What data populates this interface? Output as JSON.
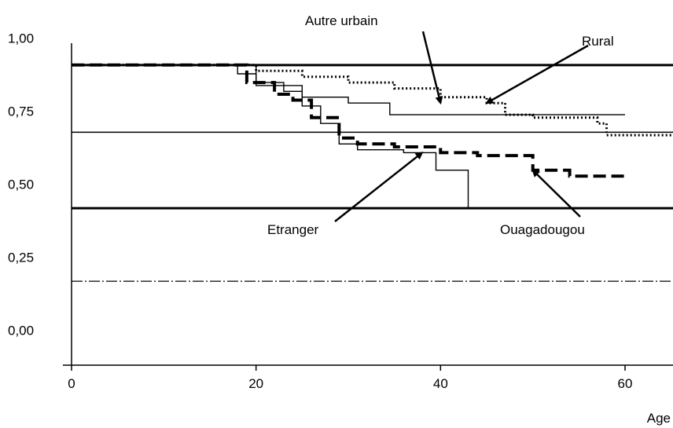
{
  "chart_data": {
    "type": "line",
    "title": "",
    "xlabel": "Age",
    "ylabel": "",
    "xlim": [
      0,
      65
    ],
    "ylim": [
      0,
      1
    ],
    "x_ticks": [
      0,
      20,
      40,
      60
    ],
    "x_tick_labels": [
      "0",
      "20",
      "40",
      "60"
    ],
    "y_ticks": [
      0,
      0.25,
      0.5,
      0.75,
      1.0
    ],
    "y_tick_labels": [
      "0,00",
      "0,25",
      "0,50",
      "0,75",
      "1,00"
    ],
    "grid": false,
    "legend": "none",
    "reference_lines": [
      {
        "y": 0.94,
        "style": "solid-thick"
      },
      {
        "y": 0.71,
        "style": "solid-thin"
      },
      {
        "y": 0.45,
        "style": "solid-thick"
      },
      {
        "y": 0.2,
        "style": "dash-dot"
      }
    ],
    "series": [
      {
        "name": "Rural",
        "style": "dotted",
        "x": [
          0,
          15,
          20,
          25,
          30,
          35,
          40,
          45,
          47,
          50,
          55,
          57,
          58,
          65
        ],
        "y": [
          0.94,
          0.94,
          0.92,
          0.9,
          0.88,
          0.86,
          0.83,
          0.81,
          0.77,
          0.76,
          0.76,
          0.74,
          0.7,
          0.7
        ]
      },
      {
        "name": "Autre urbain",
        "style": "solid-thin",
        "x": [
          0,
          16,
          18,
          20,
          23,
          25,
          30,
          34,
          34.5,
          60
        ],
        "y": [
          0.94,
          0.94,
          0.91,
          0.88,
          0.85,
          0.83,
          0.81,
          0.81,
          0.77,
          0.77
        ]
      },
      {
        "name": "Etranger",
        "style": "solid-thin",
        "x": [
          0,
          16,
          20,
          25,
          27,
          29,
          31,
          36,
          39,
          39.5,
          42.5,
          43
        ],
        "y": [
          0.94,
          0.94,
          0.87,
          0.8,
          0.74,
          0.67,
          0.65,
          0.64,
          0.64,
          0.58,
          0.58,
          0.45
        ]
      },
      {
        "name": "Ouagadougou",
        "style": "dashed-thick",
        "x": [
          0,
          16,
          19,
          22,
          24,
          26,
          29,
          31,
          35,
          40,
          44,
          50,
          54,
          60
        ],
        "y": [
          0.94,
          0.94,
          0.88,
          0.84,
          0.82,
          0.76,
          0.69,
          0.67,
          0.66,
          0.64,
          0.63,
          0.58,
          0.56,
          0.56
        ]
      }
    ],
    "annotations": [
      {
        "text": "Autre urbain",
        "points_to": [
          40,
          0.81
        ]
      },
      {
        "text": "Rural",
        "points_to": [
          45,
          0.81
        ]
      },
      {
        "text": "Etranger",
        "points_to": [
          38,
          0.64
        ]
      },
      {
        "text": "Ouagadougou",
        "points_to": [
          50,
          0.58
        ]
      }
    ]
  }
}
